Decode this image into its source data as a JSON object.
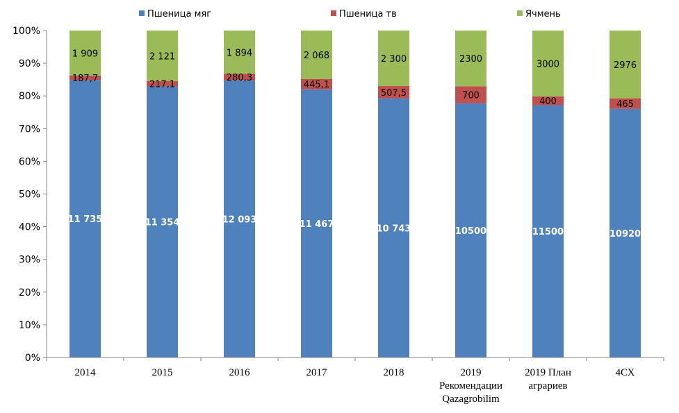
{
  "chart_data": {
    "type": "bar",
    "stacked": true,
    "normalized": true,
    "categories": [
      [
        "2014"
      ],
      [
        "2015"
      ],
      [
        "2016"
      ],
      [
        "2017"
      ],
      [
        "2018"
      ],
      [
        "2019",
        "Рекомендации",
        "Qazagrobilim"
      ],
      [
        "2019 План",
        "аграриев"
      ],
      [
        "4СХ"
      ]
    ],
    "series": [
      {
        "name": "Пшеница мяг",
        "color": "#4F81BD",
        "values": [
          11735,
          11354,
          12093,
          11467,
          10743,
          10500,
          11500,
          10920
        ],
        "labels": [
          "11 735",
          "11 354",
          "12 093",
          "11 467",
          "10 743",
          "10500",
          "11500",
          "10920"
        ]
      },
      {
        "name": "Пшеница тв",
        "color": "#C0504D",
        "values": [
          187.7,
          217.1,
          280.3,
          445.1,
          507.5,
          700,
          400,
          465
        ],
        "labels": [
          "187,7",
          "217,1",
          "280,3",
          "445,1",
          "507,5",
          "700",
          "400",
          "465"
        ]
      },
      {
        "name": "Ячмень",
        "color": "#9BBB59",
        "values": [
          1909,
          2121,
          1894,
          2068,
          2300,
          2300,
          3000,
          2976
        ],
        "labels": [
          "1 909",
          "2 121",
          "1 894",
          "2 068",
          "2 300",
          "2300",
          "3000",
          "2976"
        ]
      }
    ],
    "y_ticks": [
      "0%",
      "10%",
      "20%",
      "30%",
      "40%",
      "50%",
      "60%",
      "70%",
      "80%",
      "90%",
      "100%"
    ],
    "ylim": [
      0,
      100
    ],
    "grid": false,
    "legend_position": "top"
  }
}
